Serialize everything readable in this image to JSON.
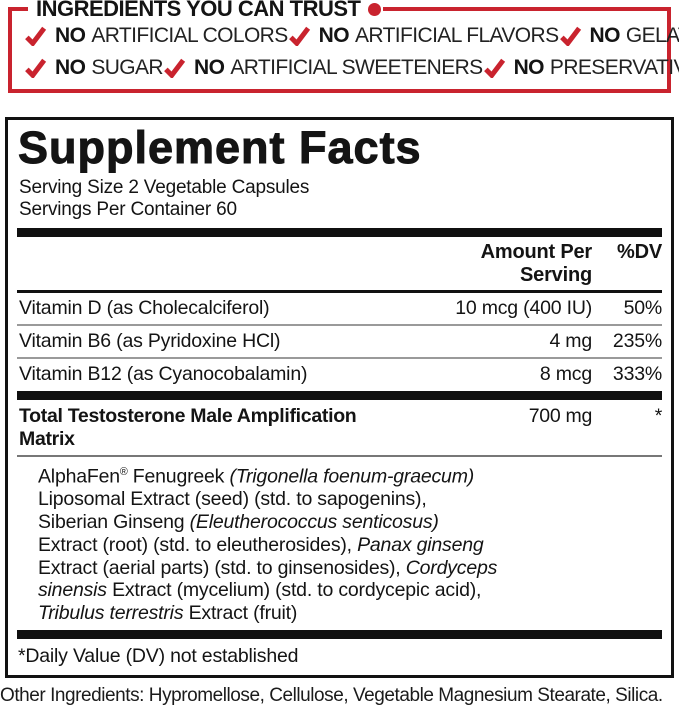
{
  "colors": {
    "accent_red": "#C9232E",
    "text_black": "#141414"
  },
  "trust": {
    "title": "INGREDIENTS YOU CAN TRUST",
    "rows": [
      [
        {
          "no": "NO",
          "text": "ARTIFICIAL COLORS"
        },
        {
          "no": "NO",
          "text": "ARTIFICIAL FLAVORS"
        },
        {
          "no": "NO",
          "text": "GELATIN"
        }
      ],
      [
        {
          "no": "NO",
          "text": "SUGAR"
        },
        {
          "no": "NO",
          "text": "ARTIFICIAL SWEETENERS"
        },
        {
          "no": "NO",
          "text": "PRESERVATIVES"
        }
      ]
    ]
  },
  "supplement_facts": {
    "title": "Supplement Facts",
    "serving_size": "Serving Size 2 Vegetable Capsules",
    "servings_per_container": "Servings Per Container 60",
    "header": {
      "amount": "Amount Per Serving",
      "dv": "%DV"
    },
    "vitamins": [
      {
        "name": "Vitamin D (as Cholecalciferol)",
        "amount": "10 mcg (400 IU)",
        "dv": "50%"
      },
      {
        "name": "Vitamin B6 (as Pyridoxine HCl)",
        "amount": "4 mg",
        "dv": "235%"
      },
      {
        "name": "Vitamin B12 (as Cyanocobalamin)",
        "amount": "8 mcg",
        "dv": "333%"
      }
    ],
    "matrix": {
      "name": "Total Testosterone Male Amplification Matrix",
      "amount": "700 mg",
      "dv": "*",
      "description_lines": [
        [
          {
            "t": "AlphaFen"
          },
          {
            "t": "®",
            "sup": true
          },
          {
            "t": " Fenugreek "
          },
          {
            "t": "(Trigonella foenum-graecum)",
            "i": true
          }
        ],
        [
          {
            "t": "Liposomal Extract (seed) (std. to sapogenins),"
          }
        ],
        [
          {
            "t": "Siberian Ginseng "
          },
          {
            "t": "(Eleutherococcus senticosus)",
            "i": true
          }
        ],
        [
          {
            "t": "Extract (root) (std. to eleutherosides), "
          },
          {
            "t": "Panax ginseng",
            "i": true
          }
        ],
        [
          {
            "t": "Extract (aerial parts) (std. to ginsenosides), "
          },
          {
            "t": "Cordyceps",
            "i": true
          }
        ],
        [
          {
            "t": "sinensis",
            "i": true
          },
          {
            "t": " Extract (mycelium) (std. to cordycepic acid),"
          }
        ],
        [
          {
            "t": "Tribulus terrestris",
            "i": true
          },
          {
            "t": " Extract (fruit)"
          }
        ]
      ]
    },
    "footnote": "*Daily Value (DV) not established"
  },
  "other_ingredients": "Other Ingredients: Hypromellose, Cellulose, Vegetable Magnesium Stearate, Silica."
}
